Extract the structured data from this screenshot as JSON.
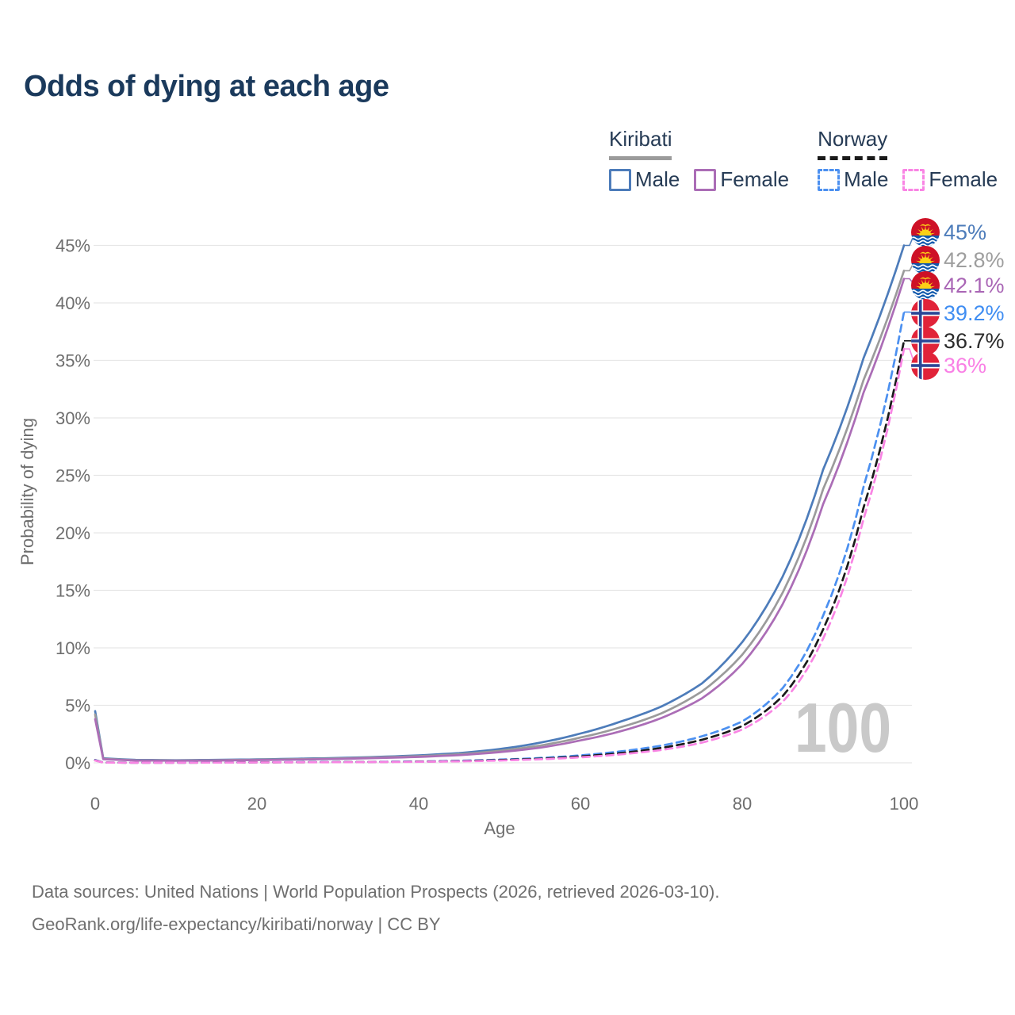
{
  "title": "Odds of dying at each age",
  "legend": {
    "groups": [
      {
        "country": "Kiribati",
        "line_style": "solid",
        "underline_color": "#9b9b9b",
        "items": [
          {
            "label": "Male",
            "color": "#4d7cba",
            "dashed": false
          },
          {
            "label": "Female",
            "color": "#ab6db6",
            "dashed": false
          }
        ]
      },
      {
        "country": "Norway",
        "line_style": "dashed",
        "underline_color": "#1a1a1a",
        "items": [
          {
            "label": "Male",
            "color": "#4c90f0",
            "dashed": true
          },
          {
            "label": "Female",
            "color": "#f985e4",
            "dashed": true
          }
        ]
      }
    ]
  },
  "chart_data": {
    "type": "line",
    "title": "Odds of dying at each age",
    "xlabel": "Age",
    "ylabel": "Probability of dying",
    "xlim": [
      0,
      100
    ],
    "ylim": [
      0,
      45
    ],
    "grid": "horizontal",
    "legend_position": "top-right",
    "watermark": "100",
    "x_ticks": [
      {
        "value": 0,
        "label": "0"
      },
      {
        "value": 20,
        "label": "20"
      },
      {
        "value": 40,
        "label": "40"
      },
      {
        "value": 60,
        "label": "60"
      },
      {
        "value": 80,
        "label": "80"
      },
      {
        "value": 100,
        "label": "100"
      }
    ],
    "y_ticks": [
      {
        "value": 0,
        "label": "0%"
      },
      {
        "value": 5,
        "label": "5%"
      },
      {
        "value": 10,
        "label": "10%"
      },
      {
        "value": 15,
        "label": "15%"
      },
      {
        "value": 20,
        "label": "20%"
      },
      {
        "value": 25,
        "label": "25%"
      },
      {
        "value": 30,
        "label": "30%"
      },
      {
        "value": 35,
        "label": "35%"
      },
      {
        "value": 40,
        "label": "40%"
      },
      {
        "value": 45,
        "label": "45%"
      }
    ],
    "series": [
      {
        "id": "kiribati-male",
        "country": "Kiribati",
        "sex": "Male",
        "color": "#4d7cba",
        "label_color": "#4d7cba",
        "dashed": false,
        "flag": "kiribati",
        "end_label": "45%",
        "end_value": 45.0,
        "points": [
          [
            0,
            4.5
          ],
          [
            1,
            0.4
          ],
          [
            5,
            0.26
          ],
          [
            10,
            0.23
          ],
          [
            15,
            0.26
          ],
          [
            20,
            0.3
          ],
          [
            25,
            0.36
          ],
          [
            30,
            0.42
          ],
          [
            35,
            0.52
          ],
          [
            40,
            0.65
          ],
          [
            45,
            0.85
          ],
          [
            50,
            1.2
          ],
          [
            55,
            1.75
          ],
          [
            60,
            2.55
          ],
          [
            65,
            3.6
          ],
          [
            70,
            4.9
          ],
          [
            75,
            6.9
          ],
          [
            80,
            10.5
          ],
          [
            85,
            16.2
          ],
          [
            90,
            25.5
          ],
          [
            95,
            35.2
          ],
          [
            100,
            45.0
          ]
        ]
      },
      {
        "id": "kiribati-all",
        "country": "Kiribati",
        "sex": "Both",
        "color": "#9b9b9b",
        "label_color": "#9e9e9e",
        "dashed": false,
        "flag": "kiribati",
        "end_label": "42.8%",
        "end_value": 42.8,
        "points": [
          [
            0,
            4.2
          ],
          [
            1,
            0.36
          ],
          [
            5,
            0.23
          ],
          [
            10,
            0.2
          ],
          [
            15,
            0.23
          ],
          [
            20,
            0.27
          ],
          [
            25,
            0.32
          ],
          [
            30,
            0.38
          ],
          [
            35,
            0.47
          ],
          [
            40,
            0.58
          ],
          [
            45,
            0.75
          ],
          [
            50,
            1.05
          ],
          [
            55,
            1.5
          ],
          [
            60,
            2.2
          ],
          [
            65,
            3.1
          ],
          [
            70,
            4.3
          ],
          [
            75,
            6.2
          ],
          [
            80,
            9.4
          ],
          [
            85,
            14.8
          ],
          [
            90,
            23.8
          ],
          [
            95,
            33.3
          ],
          [
            100,
            42.8
          ]
        ]
      },
      {
        "id": "kiribati-female",
        "country": "Kiribati",
        "sex": "Female",
        "color": "#ab6db6",
        "label_color": "#a965b5",
        "dashed": false,
        "flag": "kiribati",
        "end_label": "42.1%",
        "end_value": 42.1,
        "points": [
          [
            0,
            3.8
          ],
          [
            1,
            0.32
          ],
          [
            5,
            0.2
          ],
          [
            10,
            0.18
          ],
          [
            15,
            0.2
          ],
          [
            20,
            0.24
          ],
          [
            25,
            0.28
          ],
          [
            30,
            0.34
          ],
          [
            35,
            0.42
          ],
          [
            40,
            0.52
          ],
          [
            45,
            0.67
          ],
          [
            50,
            0.93
          ],
          [
            55,
            1.32
          ],
          [
            60,
            1.95
          ],
          [
            65,
            2.75
          ],
          [
            70,
            3.9
          ],
          [
            75,
            5.6
          ],
          [
            80,
            8.6
          ],
          [
            85,
            13.8
          ],
          [
            90,
            22.5
          ],
          [
            95,
            32.2
          ],
          [
            100,
            42.1
          ]
        ]
      },
      {
        "id": "norway-male",
        "country": "Norway",
        "sex": "Male",
        "color": "#4c90f0",
        "label_color": "#3f8df2",
        "dashed": true,
        "flag": "norway",
        "end_label": "39.2%",
        "end_value": 39.2,
        "points": [
          [
            0,
            0.25
          ],
          [
            1,
            0.03
          ],
          [
            5,
            0.012
          ],
          [
            10,
            0.012
          ],
          [
            15,
            0.03
          ],
          [
            20,
            0.05
          ],
          [
            25,
            0.06
          ],
          [
            30,
            0.07
          ],
          [
            35,
            0.09
          ],
          [
            40,
            0.12
          ],
          [
            45,
            0.18
          ],
          [
            50,
            0.28
          ],
          [
            55,
            0.42
          ],
          [
            60,
            0.65
          ],
          [
            65,
            1.0
          ],
          [
            70,
            1.5
          ],
          [
            75,
            2.3
          ],
          [
            80,
            3.6
          ],
          [
            85,
            6.5
          ],
          [
            90,
            12.8
          ],
          [
            95,
            24.0
          ],
          [
            100,
            39.2
          ]
        ]
      },
      {
        "id": "norway-all",
        "country": "Norway",
        "sex": "Both",
        "color": "#1a1a1a",
        "label_color": "#2b2b2b",
        "dashed": true,
        "flag": "norway",
        "end_label": "36.7%",
        "end_value": 36.7,
        "points": [
          [
            0,
            0.22
          ],
          [
            1,
            0.028
          ],
          [
            5,
            0.011
          ],
          [
            10,
            0.011
          ],
          [
            15,
            0.025
          ],
          [
            20,
            0.04
          ],
          [
            25,
            0.05
          ],
          [
            30,
            0.06
          ],
          [
            35,
            0.08
          ],
          [
            40,
            0.1
          ],
          [
            45,
            0.15
          ],
          [
            50,
            0.24
          ],
          [
            55,
            0.36
          ],
          [
            60,
            0.56
          ],
          [
            65,
            0.85
          ],
          [
            70,
            1.3
          ],
          [
            75,
            2.0
          ],
          [
            80,
            3.2
          ],
          [
            85,
            5.8
          ],
          [
            90,
            11.6
          ],
          [
            95,
            22.2
          ],
          [
            100,
            36.7
          ]
        ]
      },
      {
        "id": "norway-female",
        "country": "Norway",
        "sex": "Female",
        "color": "#f985e4",
        "label_color": "#f980e5",
        "dashed": true,
        "flag": "norway",
        "end_label": "36%",
        "end_value": 36.0,
        "points": [
          [
            0,
            0.2
          ],
          [
            1,
            0.025
          ],
          [
            5,
            0.01
          ],
          [
            10,
            0.01
          ],
          [
            15,
            0.022
          ],
          [
            20,
            0.035
          ],
          [
            25,
            0.045
          ],
          [
            30,
            0.055
          ],
          [
            35,
            0.07
          ],
          [
            40,
            0.09
          ],
          [
            45,
            0.13
          ],
          [
            50,
            0.2
          ],
          [
            55,
            0.31
          ],
          [
            60,
            0.48
          ],
          [
            65,
            0.74
          ],
          [
            70,
            1.12
          ],
          [
            75,
            1.75
          ],
          [
            80,
            2.9
          ],
          [
            85,
            5.3
          ],
          [
            90,
            10.8
          ],
          [
            95,
            21.2
          ],
          [
            100,
            36.0
          ]
        ]
      }
    ]
  },
  "footer": {
    "source_line": "Data sources: United Nations | World Population Prospects (2026, retrieved 2026-03-10).",
    "attribution_line": "GeoRank.org/life-expectancy/kiribati/norway | CC BY"
  }
}
